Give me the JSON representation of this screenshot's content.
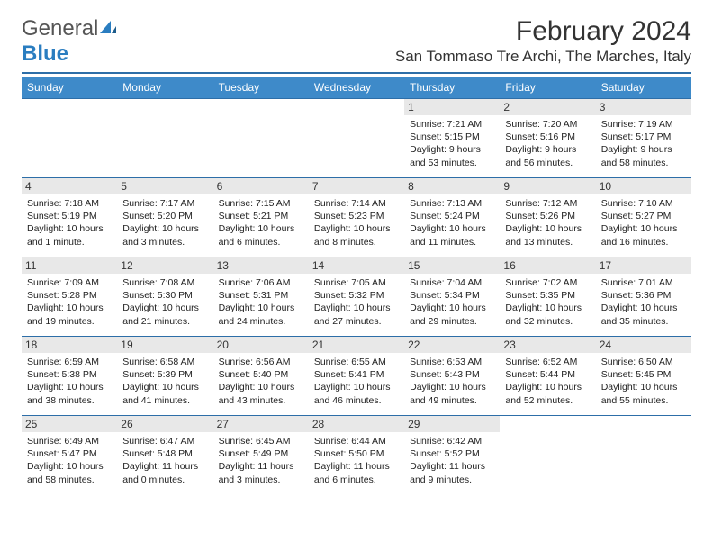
{
  "logo": {
    "text1": "General",
    "text2": "Blue"
  },
  "title": "February 2024",
  "location": "San Tommaso Tre Archi, The Marches, Italy",
  "colors": {
    "header_bg": "#3e8ac9",
    "divider": "#2d6ea8",
    "daynum_bg": "#e8e8e8",
    "text": "#222222",
    "logo_gray": "#555555",
    "logo_blue": "#2a7dc0"
  },
  "weekdays": [
    "Sunday",
    "Monday",
    "Tuesday",
    "Wednesday",
    "Thursday",
    "Friday",
    "Saturday"
  ],
  "weeks": [
    [
      null,
      null,
      null,
      null,
      {
        "n": "1",
        "sr": "Sunrise: 7:21 AM",
        "ss": "Sunset: 5:15 PM",
        "d1": "Daylight: 9 hours",
        "d2": "and 53 minutes."
      },
      {
        "n": "2",
        "sr": "Sunrise: 7:20 AM",
        "ss": "Sunset: 5:16 PM",
        "d1": "Daylight: 9 hours",
        "d2": "and 56 minutes."
      },
      {
        "n": "3",
        "sr": "Sunrise: 7:19 AM",
        "ss": "Sunset: 5:17 PM",
        "d1": "Daylight: 9 hours",
        "d2": "and 58 minutes."
      }
    ],
    [
      {
        "n": "4",
        "sr": "Sunrise: 7:18 AM",
        "ss": "Sunset: 5:19 PM",
        "d1": "Daylight: 10 hours",
        "d2": "and 1 minute."
      },
      {
        "n": "5",
        "sr": "Sunrise: 7:17 AM",
        "ss": "Sunset: 5:20 PM",
        "d1": "Daylight: 10 hours",
        "d2": "and 3 minutes."
      },
      {
        "n": "6",
        "sr": "Sunrise: 7:15 AM",
        "ss": "Sunset: 5:21 PM",
        "d1": "Daylight: 10 hours",
        "d2": "and 6 minutes."
      },
      {
        "n": "7",
        "sr": "Sunrise: 7:14 AM",
        "ss": "Sunset: 5:23 PM",
        "d1": "Daylight: 10 hours",
        "d2": "and 8 minutes."
      },
      {
        "n": "8",
        "sr": "Sunrise: 7:13 AM",
        "ss": "Sunset: 5:24 PM",
        "d1": "Daylight: 10 hours",
        "d2": "and 11 minutes."
      },
      {
        "n": "9",
        "sr": "Sunrise: 7:12 AM",
        "ss": "Sunset: 5:26 PM",
        "d1": "Daylight: 10 hours",
        "d2": "and 13 minutes."
      },
      {
        "n": "10",
        "sr": "Sunrise: 7:10 AM",
        "ss": "Sunset: 5:27 PM",
        "d1": "Daylight: 10 hours",
        "d2": "and 16 minutes."
      }
    ],
    [
      {
        "n": "11",
        "sr": "Sunrise: 7:09 AM",
        "ss": "Sunset: 5:28 PM",
        "d1": "Daylight: 10 hours",
        "d2": "and 19 minutes."
      },
      {
        "n": "12",
        "sr": "Sunrise: 7:08 AM",
        "ss": "Sunset: 5:30 PM",
        "d1": "Daylight: 10 hours",
        "d2": "and 21 minutes."
      },
      {
        "n": "13",
        "sr": "Sunrise: 7:06 AM",
        "ss": "Sunset: 5:31 PM",
        "d1": "Daylight: 10 hours",
        "d2": "and 24 minutes."
      },
      {
        "n": "14",
        "sr": "Sunrise: 7:05 AM",
        "ss": "Sunset: 5:32 PM",
        "d1": "Daylight: 10 hours",
        "d2": "and 27 minutes."
      },
      {
        "n": "15",
        "sr": "Sunrise: 7:04 AM",
        "ss": "Sunset: 5:34 PM",
        "d1": "Daylight: 10 hours",
        "d2": "and 29 minutes."
      },
      {
        "n": "16",
        "sr": "Sunrise: 7:02 AM",
        "ss": "Sunset: 5:35 PM",
        "d1": "Daylight: 10 hours",
        "d2": "and 32 minutes."
      },
      {
        "n": "17",
        "sr": "Sunrise: 7:01 AM",
        "ss": "Sunset: 5:36 PM",
        "d1": "Daylight: 10 hours",
        "d2": "and 35 minutes."
      }
    ],
    [
      {
        "n": "18",
        "sr": "Sunrise: 6:59 AM",
        "ss": "Sunset: 5:38 PM",
        "d1": "Daylight: 10 hours",
        "d2": "and 38 minutes."
      },
      {
        "n": "19",
        "sr": "Sunrise: 6:58 AM",
        "ss": "Sunset: 5:39 PM",
        "d1": "Daylight: 10 hours",
        "d2": "and 41 minutes."
      },
      {
        "n": "20",
        "sr": "Sunrise: 6:56 AM",
        "ss": "Sunset: 5:40 PM",
        "d1": "Daylight: 10 hours",
        "d2": "and 43 minutes."
      },
      {
        "n": "21",
        "sr": "Sunrise: 6:55 AM",
        "ss": "Sunset: 5:41 PM",
        "d1": "Daylight: 10 hours",
        "d2": "and 46 minutes."
      },
      {
        "n": "22",
        "sr": "Sunrise: 6:53 AM",
        "ss": "Sunset: 5:43 PM",
        "d1": "Daylight: 10 hours",
        "d2": "and 49 minutes."
      },
      {
        "n": "23",
        "sr": "Sunrise: 6:52 AM",
        "ss": "Sunset: 5:44 PM",
        "d1": "Daylight: 10 hours",
        "d2": "and 52 minutes."
      },
      {
        "n": "24",
        "sr": "Sunrise: 6:50 AM",
        "ss": "Sunset: 5:45 PM",
        "d1": "Daylight: 10 hours",
        "d2": "and 55 minutes."
      }
    ],
    [
      {
        "n": "25",
        "sr": "Sunrise: 6:49 AM",
        "ss": "Sunset: 5:47 PM",
        "d1": "Daylight: 10 hours",
        "d2": "and 58 minutes."
      },
      {
        "n": "26",
        "sr": "Sunrise: 6:47 AM",
        "ss": "Sunset: 5:48 PM",
        "d1": "Daylight: 11 hours",
        "d2": "and 0 minutes."
      },
      {
        "n": "27",
        "sr": "Sunrise: 6:45 AM",
        "ss": "Sunset: 5:49 PM",
        "d1": "Daylight: 11 hours",
        "d2": "and 3 minutes."
      },
      {
        "n": "28",
        "sr": "Sunrise: 6:44 AM",
        "ss": "Sunset: 5:50 PM",
        "d1": "Daylight: 11 hours",
        "d2": "and 6 minutes."
      },
      {
        "n": "29",
        "sr": "Sunrise: 6:42 AM",
        "ss": "Sunset: 5:52 PM",
        "d1": "Daylight: 11 hours",
        "d2": "and 9 minutes."
      },
      null,
      null
    ]
  ]
}
